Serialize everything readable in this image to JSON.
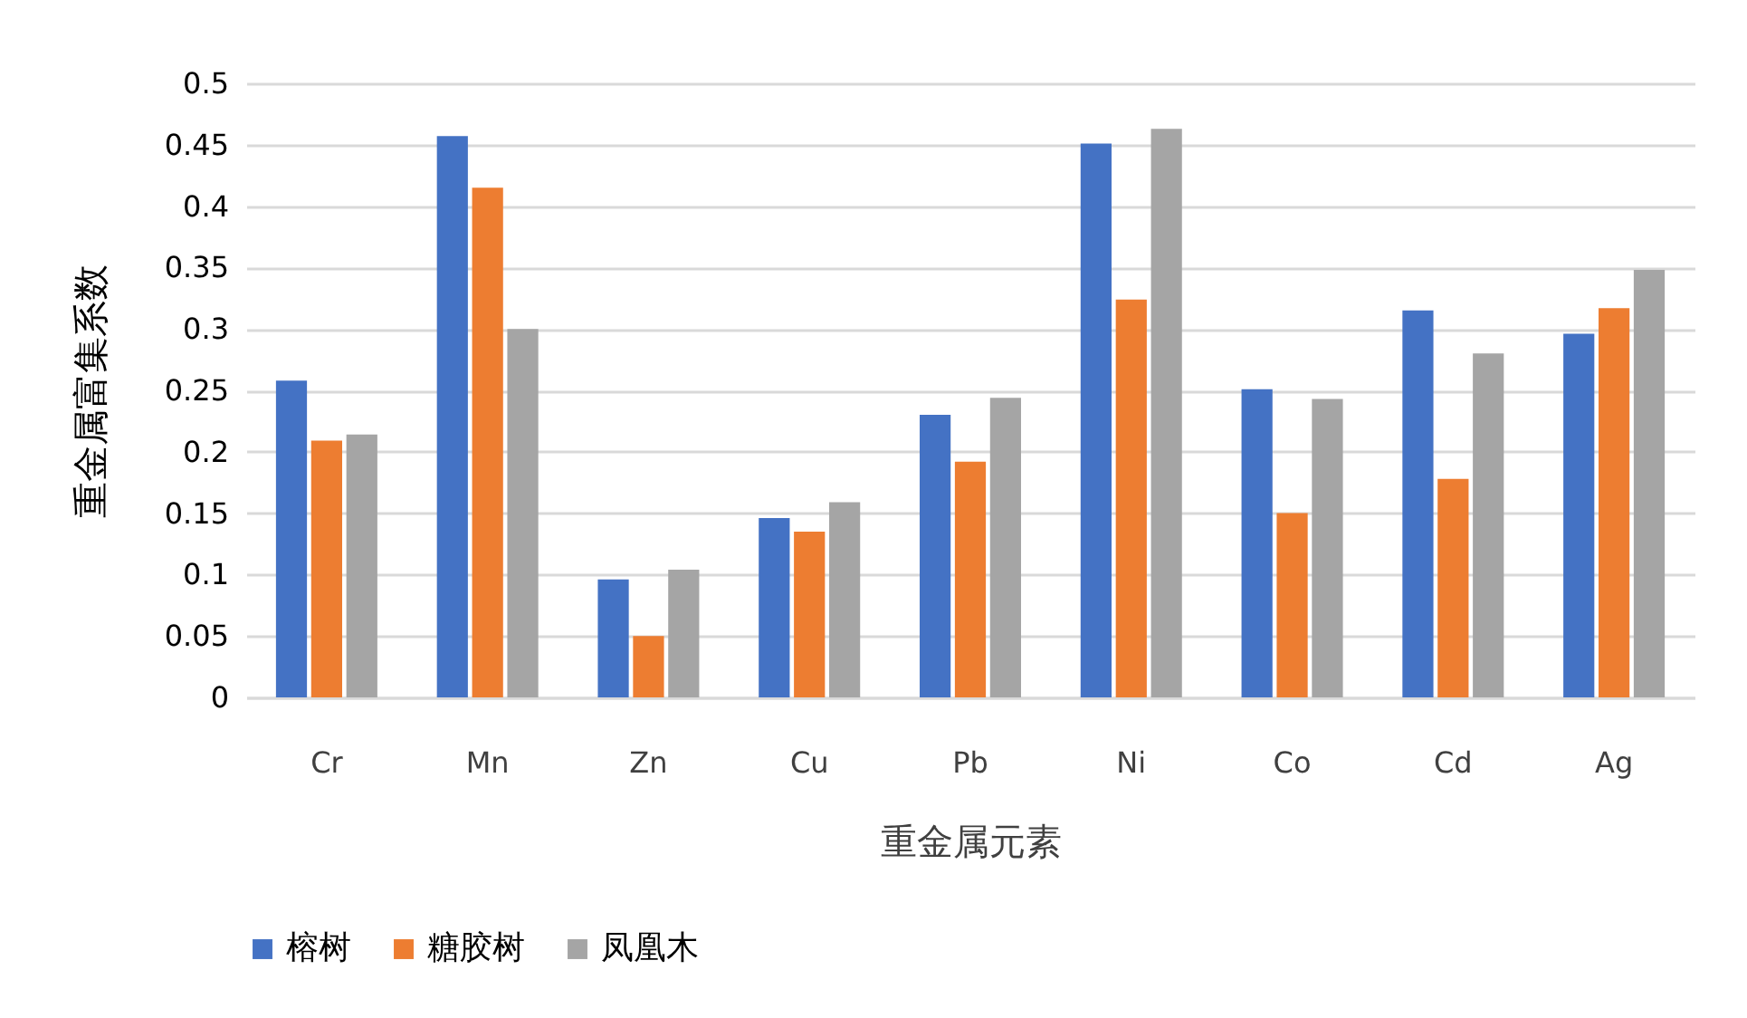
{
  "chart_data": {
    "type": "bar",
    "xlabel": "重金属元素",
    "ylabel": "重金属富集系数",
    "categories": [
      "Cr",
      "Mn",
      "Zn",
      "Cu",
      "Pb",
      "Ni",
      "Co",
      "Cd",
      "Ag"
    ],
    "series": [
      {
        "name": "榕树",
        "color": "#4472c4",
        "values": [
          0.258,
          0.457,
          0.096,
          0.146,
          0.23,
          0.451,
          0.251,
          0.315,
          0.296
        ]
      },
      {
        "name": "糖胶树",
        "color": "#ed7d31",
        "values": [
          0.209,
          0.415,
          0.05,
          0.135,
          0.192,
          0.324,
          0.15,
          0.178,
          0.317
        ]
      },
      {
        "name": "凤凰木",
        "color": "#a5a5a5",
        "values": [
          0.214,
          0.3,
          0.104,
          0.159,
          0.244,
          0.463,
          0.243,
          0.28,
          0.348
        ]
      }
    ],
    "ylim": [
      0,
      0.5
    ],
    "yticks": [
      0,
      0.05,
      0.1,
      0.15,
      0.2,
      0.25,
      0.3,
      0.35,
      0.4,
      0.45,
      0.5
    ],
    "grid": "y",
    "legend": "bottom"
  }
}
